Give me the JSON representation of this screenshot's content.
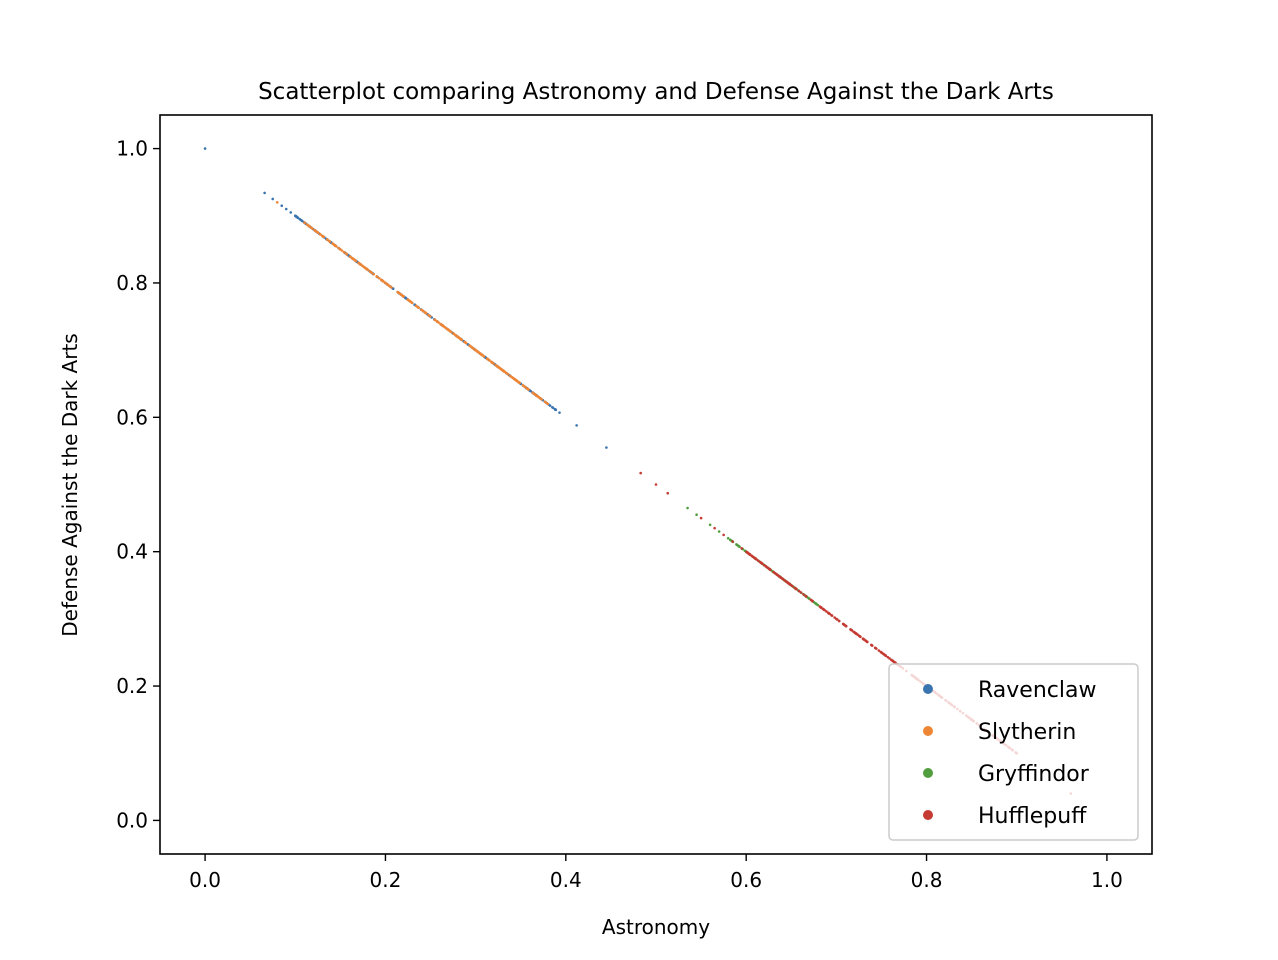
{
  "chart_data": {
    "type": "scatter",
    "title": "Scatterplot comparing Astronomy and Defense Against the Dark Arts",
    "xlabel": "Astronomy",
    "ylabel": "Defense Against the Dark Arts",
    "xlim": [
      -0.05,
      1.05
    ],
    "ylim": [
      -0.05,
      1.05
    ],
    "xticks": [
      "0.0",
      "0.2",
      "0.4",
      "0.6",
      "0.8",
      "1.0"
    ],
    "yticks": [
      "0.0",
      "0.2",
      "0.4",
      "0.6",
      "0.8",
      "1.0"
    ],
    "grid": false,
    "legend_position": "lower-right",
    "relation": "y = 1 - x",
    "series": [
      {
        "name": "Ravenclaw",
        "color": "#3b75af",
        "x_ranges": [
          [
            0.1,
            0.39
          ]
        ],
        "x": [
          0.0,
          0.066,
          0.075,
          0.085,
          0.09,
          0.095,
          0.1,
          0.105,
          0.112,
          0.12,
          0.13,
          0.14,
          0.16,
          0.2,
          0.33,
          0.345,
          0.36,
          0.385,
          0.393,
          0.412,
          0.445
        ]
      },
      {
        "name": "Slytherin",
        "color": "#ef8636",
        "x_ranges": [
          [
            0.11,
            0.38
          ]
        ],
        "x": [
          0.08,
          0.115,
          0.13,
          0.15,
          0.18,
          0.22,
          0.27,
          0.3,
          0.34,
          0.37,
          0.38
        ]
      },
      {
        "name": "Gryffindor",
        "color": "#519e3e",
        "x_ranges": [
          [
            0.58,
            0.68
          ]
        ],
        "x": [
          0.535,
          0.545,
          0.56,
          0.57,
          0.58,
          0.6,
          0.62,
          0.63,
          0.65
        ]
      },
      {
        "name": "Hufflepuff",
        "color": "#c53a32",
        "x_ranges": [
          [
            0.6,
            0.9
          ]
        ],
        "x": [
          0.483,
          0.5,
          0.513,
          0.55,
          0.565,
          0.575,
          0.585,
          0.595,
          0.61,
          0.64,
          0.7,
          0.75,
          0.8,
          0.85,
          0.9,
          0.96
        ]
      }
    ]
  }
}
